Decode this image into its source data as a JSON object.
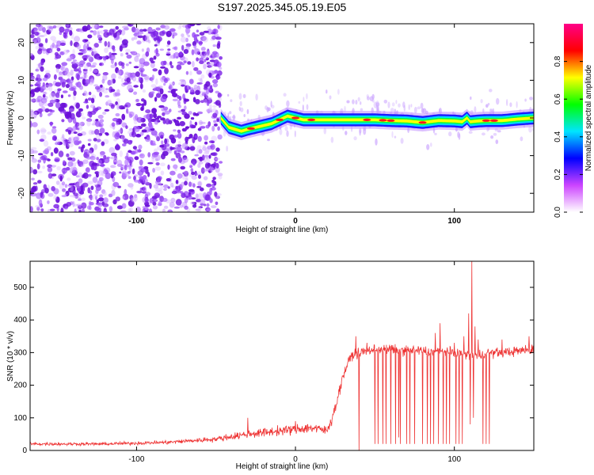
{
  "title": "S197.2025.345.05.19.E05",
  "chart_data": [
    {
      "type": "heatmap",
      "xlabel": "Height of straight line (km)",
      "ylabel": "Frequency (Hz)",
      "xlim": [
        -167,
        150
      ],
      "ylim": [
        -25,
        25
      ],
      "x_ticks": [
        -100,
        0,
        100
      ],
      "x_tick_labels": [
        "-100",
        "0",
        "100"
      ],
      "y_ticks": [
        -20,
        -10,
        0,
        10,
        20
      ],
      "y_tick_labels": [
        "-20",
        "-10",
        "0",
        "10",
        "20"
      ],
      "colorbar": {
        "label": "Normalized spectral amplitude",
        "ticks": [
          0.0,
          0.2,
          0.4,
          0.6,
          0.8
        ],
        "tick_labels": [
          "0.0",
          "0.2",
          "0.4",
          "0.6",
          "0.8"
        ],
        "range": [
          0,
          1
        ],
        "colors": [
          "#ffffff",
          "#cc44ff",
          "#0000ff",
          "#00e5ff",
          "#00ff00",
          "#ffff00",
          "#ff0000",
          "#ff0088"
        ]
      },
      "ridge": {
        "description_points_x": [
          -47,
          -42,
          -38,
          -34,
          -30,
          -25,
          -20,
          -15,
          -10,
          -5,
          0,
          5,
          10,
          20,
          30,
          40,
          50,
          60,
          70,
          80,
          90,
          100,
          105,
          108,
          110,
          115,
          120,
          130,
          140,
          150
        ],
        "frequency": [
          0,
          -2.5,
          -3.0,
          -3.5,
          -3.0,
          -2.5,
          -2.0,
          -1.5,
          -0.5,
          0.5,
          0,
          -0.5,
          -0.5,
          -0.5,
          -0.5,
          -0.5,
          -0.5,
          -0.7,
          -0.8,
          -1.2,
          -0.7,
          -0.8,
          -1.0,
          0.0,
          -1.0,
          -0.8,
          -0.7,
          -0.7,
          -0.3,
          0.0
        ]
      }
    },
    {
      "type": "line",
      "xlabel": "Height of straight line (km)",
      "ylabel": "SNR (10 * v/v)",
      "xlim": [
        -167,
        150
      ],
      "ylim": [
        0,
        580
      ],
      "x_ticks": [
        -100,
        0,
        100
      ],
      "x_tick_labels": [
        "-100",
        "0",
        "100"
      ],
      "y_ticks": [
        0,
        100,
        200,
        300,
        400,
        500
      ],
      "y_tick_labels": [
        "0",
        "100",
        "200",
        "300",
        "400",
        "500"
      ],
      "color": "#ee3333",
      "baseline": {
        "x": [
          -167,
          -120,
          -80,
          -50,
          -30,
          -10,
          0,
          10,
          20,
          25,
          30,
          35,
          40,
          50,
          60,
          80,
          100,
          115,
          120,
          130,
          140,
          150
        ],
        "y": [
          20,
          20,
          25,
          35,
          50,
          60,
          65,
          70,
          60,
          130,
          230,
          290,
          300,
          310,
          310,
          305,
          300,
          290,
          300,
          300,
          305,
          310
        ]
      },
      "dropouts_x": [
        40,
        50,
        52,
        55,
        57,
        60,
        63,
        65,
        66,
        70,
        72,
        75,
        80,
        83,
        85,
        87,
        90,
        93,
        95,
        97,
        101,
        103,
        105,
        110,
        112,
        118,
        120,
        122
      ],
      "dropouts_y": [
        0,
        20,
        20,
        20,
        20,
        20,
        20,
        40,
        20,
        20,
        20,
        20,
        20,
        20,
        20,
        20,
        20,
        20,
        20,
        20,
        20,
        20,
        20,
        80,
        100,
        20,
        20,
        20
      ],
      "spikes_x": [
        -30,
        0,
        38,
        45,
        70,
        88,
        91,
        100,
        103,
        106,
        109,
        111,
        113,
        115,
        130,
        147
      ],
      "spikes_y": [
        100,
        90,
        350,
        330,
        350,
        360,
        390,
        330,
        370,
        350,
        420,
        580,
        380,
        340,
        340,
        350
      ]
    }
  ]
}
